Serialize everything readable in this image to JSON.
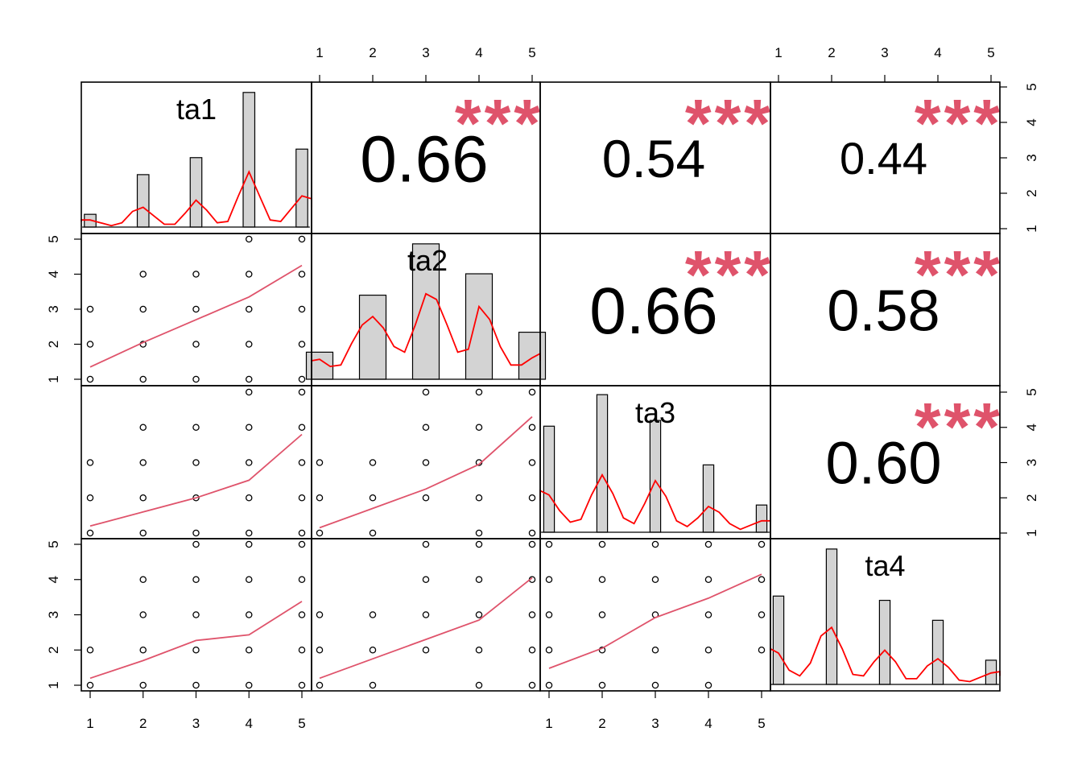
{
  "chart_data": {
    "type": "scatter",
    "subtype": "pairs-correlation-matrix",
    "variables": [
      "ta1",
      "ta2",
      "ta3",
      "ta4"
    ],
    "axis_ticks": [
      "1",
      "2",
      "3",
      "4",
      "5"
    ],
    "axis_range": [
      1,
      5
    ],
    "significance_marker": "***",
    "correlations": [
      {
        "row": 0,
        "col": 1,
        "label": "0.66",
        "stars": "***",
        "font_size": 82
      },
      {
        "row": 0,
        "col": 2,
        "label": "0.54",
        "stars": "***",
        "font_size": 66
      },
      {
        "row": 0,
        "col": 3,
        "label": "0.44",
        "stars": "***",
        "font_size": 56
      },
      {
        "row": 1,
        "col": 2,
        "label": "0.66",
        "stars": "***",
        "font_size": 82
      },
      {
        "row": 1,
        "col": 3,
        "label": "0.58",
        "stars": "***",
        "font_size": 72
      },
      {
        "row": 2,
        "col": 3,
        "label": "0.60",
        "stars": "***",
        "font_size": 74
      }
    ],
    "histograms": [
      {
        "variable": "ta1",
        "bins": [
          1,
          2,
          3,
          4,
          5
        ],
        "heights": [
          0.09,
          0.37,
          0.49,
          0.95,
          0.55
        ],
        "bar_width": 0.22,
        "density": [
          [
            0.6,
            0.04
          ],
          [
            0.8,
            0.05
          ],
          [
            1.0,
            0.05
          ],
          [
            1.2,
            0.03
          ],
          [
            1.4,
            0.01
          ],
          [
            1.6,
            0.03
          ],
          [
            1.8,
            0.11
          ],
          [
            2.0,
            0.14
          ],
          [
            2.2,
            0.08
          ],
          [
            2.4,
            0.02
          ],
          [
            2.6,
            0.02
          ],
          [
            2.8,
            0.1
          ],
          [
            3.0,
            0.19
          ],
          [
            3.2,
            0.12
          ],
          [
            3.4,
            0.03
          ],
          [
            3.6,
            0.04
          ],
          [
            3.8,
            0.22
          ],
          [
            4.0,
            0.39
          ],
          [
            4.2,
            0.22
          ],
          [
            4.4,
            0.05
          ],
          [
            4.6,
            0.04
          ],
          [
            4.8,
            0.13
          ],
          [
            5.0,
            0.22
          ],
          [
            5.2,
            0.2
          ],
          [
            5.4,
            0.14
          ]
        ]
      },
      {
        "variable": "ta2",
        "bins": [
          1,
          2,
          3,
          4,
          5
        ],
        "heights": [
          0.19,
          0.59,
          0.95,
          0.74,
          0.33
        ],
        "bar_width": 0.5,
        "density": [
          [
            0.6,
            0.09
          ],
          [
            0.8,
            0.13
          ],
          [
            1.0,
            0.14
          ],
          [
            1.2,
            0.09
          ],
          [
            1.4,
            0.1
          ],
          [
            1.6,
            0.25
          ],
          [
            1.8,
            0.38
          ],
          [
            2.0,
            0.44
          ],
          [
            2.2,
            0.36
          ],
          [
            2.4,
            0.23
          ],
          [
            2.6,
            0.19
          ],
          [
            2.8,
            0.38
          ],
          [
            3.0,
            0.6
          ],
          [
            3.2,
            0.56
          ],
          [
            3.4,
            0.38
          ],
          [
            3.6,
            0.19
          ],
          [
            3.8,
            0.21
          ],
          [
            4.0,
            0.51
          ],
          [
            4.2,
            0.42
          ],
          [
            4.4,
            0.23
          ],
          [
            4.6,
            0.1
          ],
          [
            4.8,
            0.1
          ],
          [
            5.0,
            0.15
          ],
          [
            5.2,
            0.18
          ],
          [
            5.4,
            0.13
          ]
        ]
      },
      {
        "variable": "ta3",
        "bins": [
          1,
          2,
          3,
          4,
          5
        ],
        "heights": [
          0.74,
          0.96,
          0.78,
          0.47,
          0.19
        ],
        "bar_width": 0.2,
        "density": [
          [
            0.6,
            0.22
          ],
          [
            0.8,
            0.29
          ],
          [
            1.0,
            0.26
          ],
          [
            1.2,
            0.15
          ],
          [
            1.4,
            0.07
          ],
          [
            1.6,
            0.09
          ],
          [
            1.8,
            0.26
          ],
          [
            2.0,
            0.4
          ],
          [
            2.2,
            0.27
          ],
          [
            2.4,
            0.1
          ],
          [
            2.6,
            0.06
          ],
          [
            2.8,
            0.2
          ],
          [
            3.0,
            0.36
          ],
          [
            3.2,
            0.25
          ],
          [
            3.4,
            0.08
          ],
          [
            3.6,
            0.04
          ],
          [
            3.8,
            0.1
          ],
          [
            4.0,
            0.18
          ],
          [
            4.2,
            0.14
          ],
          [
            4.4,
            0.06
          ],
          [
            4.6,
            0.02
          ],
          [
            4.8,
            0.05
          ],
          [
            5.0,
            0.08
          ],
          [
            5.2,
            0.08
          ],
          [
            5.4,
            0.07
          ]
        ]
      },
      {
        "variable": "ta4",
        "bins": [
          1,
          2,
          3,
          4,
          5
        ],
        "heights": [
          0.62,
          0.95,
          0.59,
          0.45,
          0.17
        ],
        "bar_width": 0.2,
        "density": [
          [
            0.6,
            0.19
          ],
          [
            0.8,
            0.25
          ],
          [
            1.0,
            0.22
          ],
          [
            1.2,
            0.1
          ],
          [
            1.4,
            0.06
          ],
          [
            1.6,
            0.15
          ],
          [
            1.8,
            0.34
          ],
          [
            2.0,
            0.4
          ],
          [
            2.2,
            0.25
          ],
          [
            2.4,
            0.07
          ],
          [
            2.6,
            0.06
          ],
          [
            2.8,
            0.16
          ],
          [
            3.0,
            0.24
          ],
          [
            3.2,
            0.16
          ],
          [
            3.4,
            0.04
          ],
          [
            3.6,
            0.04
          ],
          [
            3.8,
            0.13
          ],
          [
            4.0,
            0.18
          ],
          [
            4.2,
            0.12
          ],
          [
            4.4,
            0.03
          ],
          [
            4.6,
            0.02
          ],
          [
            4.8,
            0.05
          ],
          [
            5.0,
            0.08
          ],
          [
            5.2,
            0.09
          ],
          [
            5.4,
            0.06
          ]
        ]
      }
    ],
    "scatter_panels": [
      {
        "row": 1,
        "col": 0,
        "x_var": "ta1",
        "y_var": "ta2",
        "points": [
          [
            1,
            1
          ],
          [
            1,
            2
          ],
          [
            1,
            3
          ],
          [
            2,
            1
          ],
          [
            2,
            2
          ],
          [
            2,
            3
          ],
          [
            2,
            4
          ],
          [
            3,
            1
          ],
          [
            3,
            2
          ],
          [
            3,
            3
          ],
          [
            3,
            4
          ],
          [
            4,
            1
          ],
          [
            4,
            2
          ],
          [
            4,
            3
          ],
          [
            4,
            4
          ],
          [
            4,
            5
          ],
          [
            5,
            1
          ],
          [
            5,
            2
          ],
          [
            5,
            3
          ],
          [
            5,
            4
          ],
          [
            5,
            5
          ]
        ],
        "smooth": [
          [
            1,
            1.35
          ],
          [
            2,
            2.05
          ],
          [
            3,
            2.7
          ],
          [
            4,
            3.35
          ],
          [
            5,
            4.25
          ]
        ]
      },
      {
        "row": 2,
        "col": 0,
        "x_var": "ta1",
        "y_var": "ta3",
        "points": [
          [
            1,
            1
          ],
          [
            1,
            2
          ],
          [
            1,
            3
          ],
          [
            2,
            1
          ],
          [
            2,
            2
          ],
          [
            2,
            3
          ],
          [
            2,
            4
          ],
          [
            3,
            1
          ],
          [
            3,
            2
          ],
          [
            3,
            3
          ],
          [
            3,
            4
          ],
          [
            4,
            1
          ],
          [
            4,
            2
          ],
          [
            4,
            3
          ],
          [
            4,
            4
          ],
          [
            4,
            5
          ],
          [
            5,
            1
          ],
          [
            5,
            2
          ],
          [
            5,
            3
          ],
          [
            5,
            4
          ],
          [
            5,
            5
          ]
        ],
        "smooth": [
          [
            1,
            1.2
          ],
          [
            2,
            1.6
          ],
          [
            3,
            2.0
          ],
          [
            4,
            2.5
          ],
          [
            5,
            3.8
          ]
        ]
      },
      {
        "row": 3,
        "col": 0,
        "x_var": "ta1",
        "y_var": "ta4",
        "points": [
          [
            1,
            1
          ],
          [
            1,
            2
          ],
          [
            2,
            1
          ],
          [
            2,
            2
          ],
          [
            2,
            3
          ],
          [
            2,
            4
          ],
          [
            3,
            1
          ],
          [
            3,
            2
          ],
          [
            3,
            3
          ],
          [
            3,
            4
          ],
          [
            3,
            5
          ],
          [
            4,
            1
          ],
          [
            4,
            2
          ],
          [
            4,
            3
          ],
          [
            4,
            4
          ],
          [
            4,
            5
          ],
          [
            5,
            1
          ],
          [
            5,
            2
          ],
          [
            5,
            3
          ],
          [
            5,
            4
          ],
          [
            5,
            5
          ]
        ],
        "smooth": [
          [
            1,
            1.2
          ],
          [
            2,
            1.7
          ],
          [
            3,
            2.27
          ],
          [
            4,
            2.43
          ],
          [
            5,
            3.38
          ]
        ]
      },
      {
        "row": 2,
        "col": 1,
        "x_var": "ta2",
        "y_var": "ta3",
        "points": [
          [
            1,
            1
          ],
          [
            1,
            2
          ],
          [
            1,
            3
          ],
          [
            2,
            1
          ],
          [
            2,
            2
          ],
          [
            2,
            3
          ],
          [
            3,
            2
          ],
          [
            3,
            3
          ],
          [
            3,
            4
          ],
          [
            3,
            5
          ],
          [
            4,
            1
          ],
          [
            4,
            2
          ],
          [
            4,
            3
          ],
          [
            4,
            4
          ],
          [
            4,
            5
          ],
          [
            5,
            1
          ],
          [
            5,
            2
          ],
          [
            5,
            3
          ],
          [
            5,
            4
          ],
          [
            5,
            5
          ]
        ],
        "smooth": [
          [
            1,
            1.15
          ],
          [
            2,
            1.7
          ],
          [
            3,
            2.25
          ],
          [
            4,
            2.95
          ],
          [
            5,
            4.3
          ]
        ]
      },
      {
        "row": 3,
        "col": 1,
        "x_var": "ta2",
        "y_var": "ta4",
        "points": [
          [
            1,
            1
          ],
          [
            1,
            2
          ],
          [
            1,
            3
          ],
          [
            2,
            1
          ],
          [
            2,
            2
          ],
          [
            2,
            3
          ],
          [
            3,
            2
          ],
          [
            3,
            3
          ],
          [
            3,
            4
          ],
          [
            3,
            5
          ],
          [
            4,
            1
          ],
          [
            4,
            2
          ],
          [
            4,
            3
          ],
          [
            4,
            4
          ],
          [
            4,
            5
          ],
          [
            5,
            1
          ],
          [
            5,
            2
          ],
          [
            5,
            3
          ],
          [
            5,
            4
          ],
          [
            5,
            5
          ]
        ],
        "smooth": [
          [
            1,
            1.2
          ],
          [
            2,
            1.75
          ],
          [
            3,
            2.3
          ],
          [
            4,
            2.85
          ],
          [
            5,
            4.05
          ]
        ]
      },
      {
        "row": 3,
        "col": 2,
        "x_var": "ta3",
        "y_var": "ta4",
        "points": [
          [
            1,
            1
          ],
          [
            1,
            2
          ],
          [
            1,
            3
          ],
          [
            1,
            4
          ],
          [
            1,
            5
          ],
          [
            2,
            1
          ],
          [
            2,
            2
          ],
          [
            2,
            3
          ],
          [
            2,
            4
          ],
          [
            2,
            5
          ],
          [
            3,
            1
          ],
          [
            3,
            2
          ],
          [
            3,
            3
          ],
          [
            3,
            4
          ],
          [
            3,
            5
          ],
          [
            4,
            1
          ],
          [
            4,
            2
          ],
          [
            4,
            3
          ],
          [
            4,
            4
          ],
          [
            4,
            5
          ],
          [
            5,
            2
          ],
          [
            5,
            3
          ],
          [
            5,
            4
          ],
          [
            5,
            5
          ]
        ],
        "smooth": [
          [
            1,
            1.48
          ],
          [
            2,
            2.05
          ],
          [
            3,
            2.92
          ],
          [
            4,
            3.47
          ],
          [
            5,
            4.15
          ]
        ]
      }
    ],
    "colors": {
      "frame": "#000000",
      "bar_fill": "#d3d3d3",
      "density_line": "#ff0000",
      "smooth_line": "#df536b",
      "stars": "#df536b",
      "text": "#000000"
    }
  }
}
